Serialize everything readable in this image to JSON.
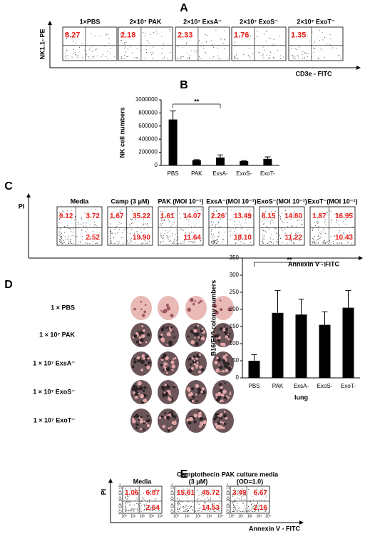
{
  "panel_labels": [
    "A",
    "B",
    "C",
    "D",
    "E"
  ],
  "panel_a": {
    "y_label": "NK1.1- PE",
    "x_label": "CD3e - FITC",
    "plots": [
      {
        "title": "1×PBS",
        "quadrants": [
          "8.27"
        ]
      },
      {
        "title": "2×10⁷ PAK",
        "quadrants": [
          "2.18"
        ]
      },
      {
        "title": "2×10⁷ ExsA⁻",
        "quadrants": [
          "2.33"
        ]
      },
      {
        "title": "2×10⁷ ExoS⁻",
        "quadrants": [
          "1.76"
        ]
      },
      {
        "title": "2×10⁷ ExoT⁻",
        "quadrants": [
          "1.35"
        ]
      }
    ]
  },
  "panel_c": {
    "y_label": "PI",
    "x_label": "Annexin V - FITC",
    "plots": [
      {
        "title": "Media",
        "quadrants": [
          "0.12",
          "3.72",
          "2.52"
        ]
      },
      {
        "title": "Camp (3 μM)",
        "quadrants": [
          "1.67",
          "35.22",
          "19.90"
        ]
      },
      {
        "title": "PAK (MOI 10⁻¹)",
        "quadrants": [
          "1.61",
          "14.07",
          "11.64"
        ]
      },
      {
        "title": "ExsA⁻(MOI 10⁻¹)",
        "quadrants": [
          "2.26",
          "13.49",
          "18.10"
        ]
      },
      {
        "title": "ExoS⁻(MOI 10⁻¹)",
        "quadrants": [
          "8.15",
          "14.80",
          "11.22"
        ]
      },
      {
        "title": "ExoT⁻(MOI 10⁻¹)",
        "quadrants": [
          "1.87",
          "16.95",
          "10.43"
        ]
      }
    ]
  },
  "panel_d": {
    "rows": [
      "1 × PBS",
      "1 × 10⁷ PAK",
      "1 × 10⁷ ExsA⁻",
      "1 × 10⁷ ExoS⁻",
      "1 × 10⁷ ExoT⁻"
    ]
  },
  "panel_e": {
    "y_label": "PI",
    "x_label": "Annexin V - FITC",
    "axis_ticks": [
      "10⁰",
      "10¹",
      "10²",
      "10³",
      "10⁴"
    ],
    "plots": [
      {
        "title": [
          "Media"
        ],
        "quadrants": [
          "1.06",
          "6.87",
          "2.64"
        ]
      },
      {
        "title": [
          "Camptothecin",
          "(3 μM)"
        ],
        "quadrants": [
          "15.61",
          "45.72",
          "14.53"
        ]
      },
      {
        "title": [
          "PAK culture media",
          "(OD=1.0)"
        ],
        "quadrants": [
          "3.49",
          "6.67",
          "2.16"
        ]
      }
    ]
  },
  "chart_data": [
    {
      "type": "bar",
      "y_label": "NK cell numbers",
      "categories": [
        "PBS",
        "PAK",
        "ExsA-",
        "ExoS-",
        "ExoT-"
      ],
      "values": [
        700000,
        80000,
        120000,
        65000,
        100000
      ],
      "errors": [
        130000,
        8000,
        40000,
        8000,
        30000
      ],
      "color": "#000000",
      "ylim": [
        0,
        1000000
      ],
      "yticks": [
        0,
        200000,
        400000,
        600000,
        800000,
        1000000
      ],
      "annotation": "**"
    },
    {
      "type": "bar",
      "y_label": "B16/F10 colony numbers",
      "x_label": "lung",
      "categories": [
        "PBS",
        "PAK",
        "ExsA-",
        "ExoS-",
        "ExoT-"
      ],
      "values": [
        50,
        190,
        185,
        155,
        205
      ],
      "errors": [
        18,
        65,
        45,
        38,
        50
      ],
      "color": "#000000",
      "ylim": [
        0,
        350
      ],
      "yticks": [
        0,
        50,
        100,
        150,
        200,
        250,
        300,
        350
      ],
      "annotation": "**"
    }
  ]
}
